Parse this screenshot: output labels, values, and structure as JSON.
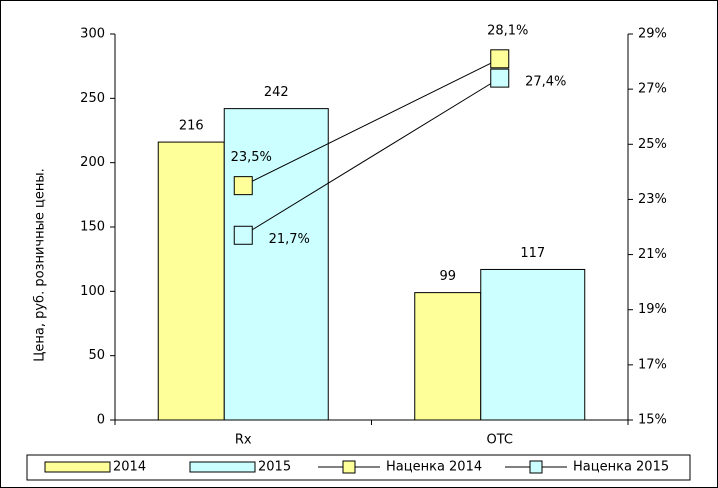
{
  "chart_data": {
    "type": "bar",
    "ylabel": "Цена, руб. розничные цены.",
    "categories": [
      "Rx",
      "OTC"
    ],
    "series": [
      {
        "name": "2014",
        "type": "bar",
        "color": "#ffff99",
        "values": [
          216,
          99
        ]
      },
      {
        "name": "2015",
        "type": "bar",
        "color": "#ccffff",
        "values": [
          242,
          117
        ]
      },
      {
        "name": "Наценка 2014",
        "type": "line",
        "axis": "y2",
        "color": "#ffff99",
        "values": [
          23.5,
          28.1
        ],
        "value_labels": [
          "23,5%",
          "28,1%"
        ]
      },
      {
        "name": "Наценка 2015",
        "type": "line",
        "axis": "y2",
        "color": "#ccffff",
        "values": [
          21.7,
          27.4
        ],
        "value_labels": [
          "21,7%",
          "27,4%"
        ]
      }
    ],
    "ylim": [
      0,
      300
    ],
    "yticks": [
      0,
      50,
      100,
      150,
      200,
      250,
      300
    ],
    "y2lim": [
      15,
      29
    ],
    "y2ticks": [
      {
        "value": 15,
        "label": "15%"
      },
      {
        "value": 17,
        "label": "17%"
      },
      {
        "value": 19,
        "label": "19%"
      },
      {
        "value": 21,
        "label": "21%"
      },
      {
        "value": 23,
        "label": "23%"
      },
      {
        "value": 25,
        "label": "25%"
      },
      {
        "value": 27,
        "label": "27%"
      },
      {
        "value": 29,
        "label": "29%"
      }
    ],
    "legend": "bottom"
  }
}
